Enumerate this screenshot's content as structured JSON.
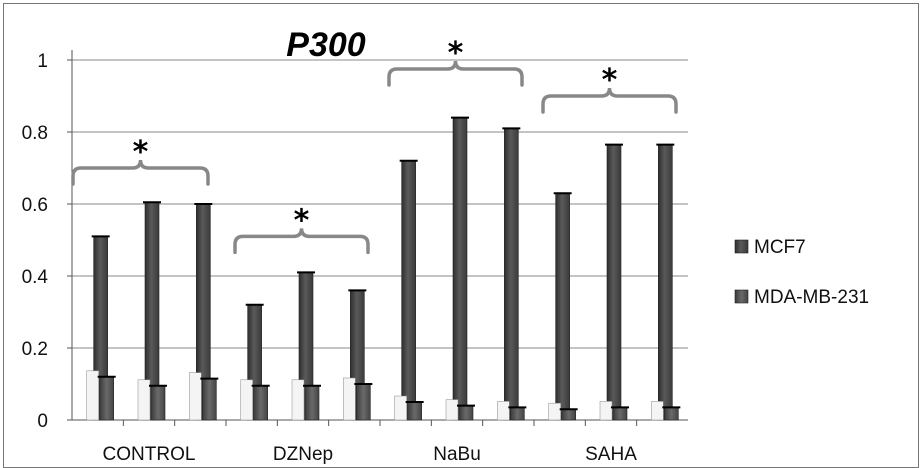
{
  "chart_data": {
    "type": "bar",
    "title": "P300",
    "groups": [
      "CONTROL",
      "DZNep",
      "NaBu",
      "SAHA"
    ],
    "bars_per_group": 3,
    "series": [
      {
        "name": "MCF7",
        "values": [
          0.51,
          0.605,
          0.6,
          0.32,
          0.41,
          0.36,
          0.72,
          0.84,
          0.81,
          0.63,
          0.765,
          0.765
        ],
        "color": "#4a4a4a"
      },
      {
        "name": "MDA-MB-231",
        "values": [
          0.12,
          0.095,
          0.115,
          0.095,
          0.095,
          0.1,
          0.05,
          0.04,
          0.035,
          0.03,
          0.035,
          0.035
        ],
        "color": "#555555"
      }
    ],
    "ylim": [
      0,
      1
    ],
    "yticks": [
      "0",
      "0.2",
      "0.4",
      "0.6",
      "0.8",
      "1"
    ],
    "grid": true,
    "legend_position": "right",
    "annotations": [
      "*",
      "*",
      "*",
      "*"
    ]
  }
}
